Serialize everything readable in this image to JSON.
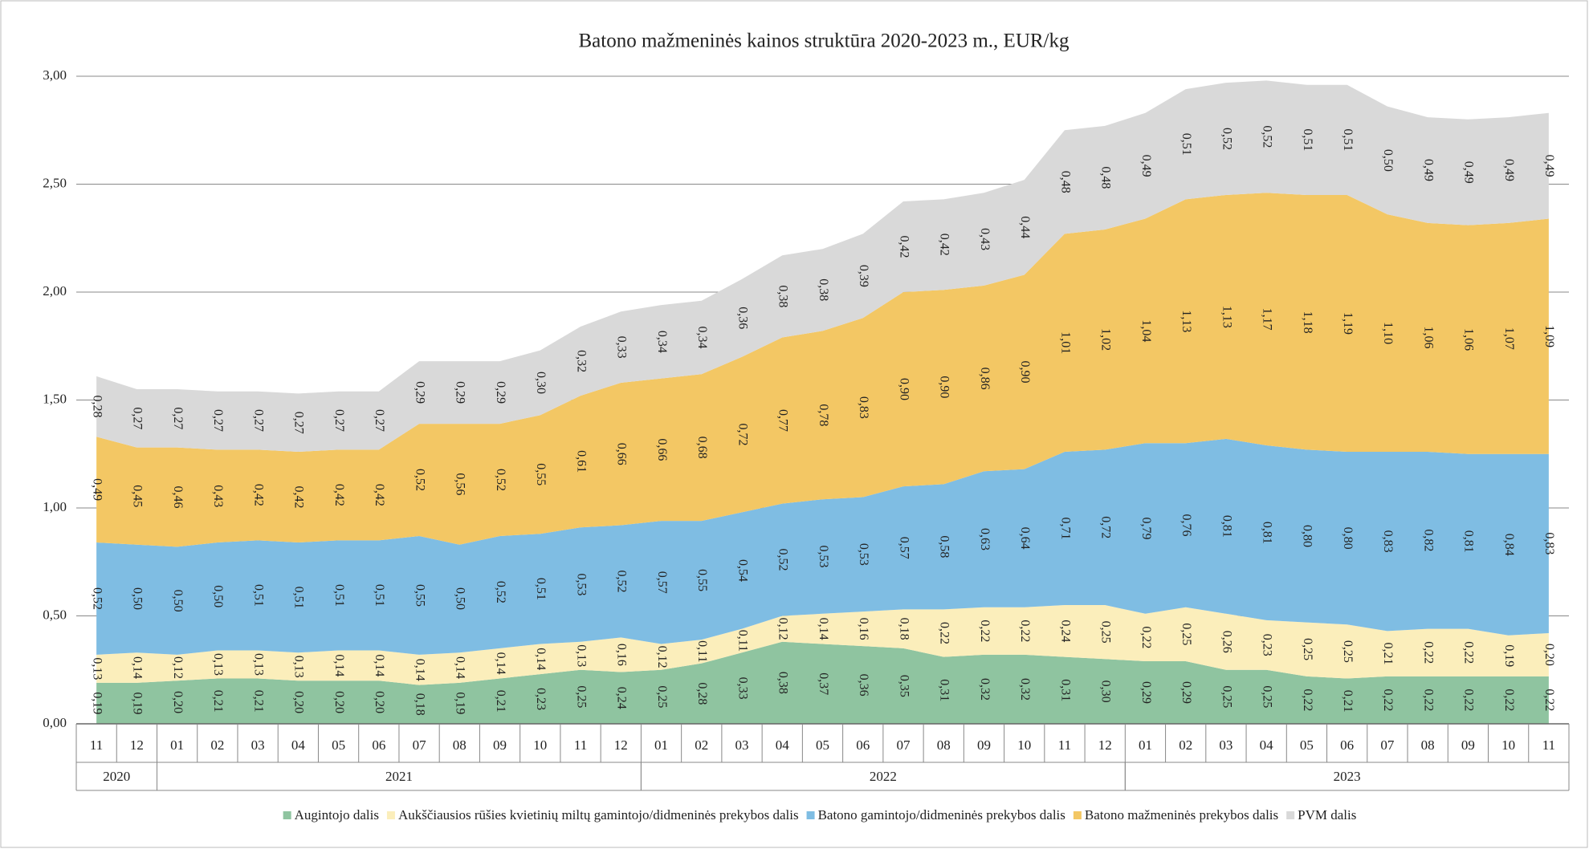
{
  "chart_data": {
    "type": "stacked_area",
    "title": "Batono mažmeninės  kainos struktūra 2020-2023 m., EUR/kg",
    "categories": [
      "11",
      "12",
      "01",
      "02",
      "03",
      "04",
      "05",
      "06",
      "07",
      "08",
      "09",
      "10",
      "11",
      "12",
      "01",
      "02",
      "03",
      "04",
      "05",
      "06",
      "07",
      "08",
      "09",
      "10",
      "11",
      "12",
      "01",
      "02",
      "03",
      "04",
      "05",
      "06",
      "07",
      "08",
      "09",
      "10",
      "11"
    ],
    "year_groups": [
      {
        "label": "2020",
        "count": 2
      },
      {
        "label": "2021",
        "count": 12
      },
      {
        "label": "2022",
        "count": 12
      },
      {
        "label": "2023",
        "count": 11
      }
    ],
    "ylim": [
      0,
      3
    ],
    "yticks": [
      {
        "value": 0,
        "label": "0,00"
      },
      {
        "value": 0.5,
        "label": "0,50"
      },
      {
        "value": 1,
        "label": "1,00"
      },
      {
        "value": 1.5,
        "label": "1,50"
      },
      {
        "value": 2,
        "label": "2,00"
      },
      {
        "value": 2.5,
        "label": "2,50"
      },
      {
        "value": 3,
        "label": "3,00"
      }
    ],
    "grid": true,
    "legend": "bottom",
    "series": [
      {
        "name": "Augintojo dalis",
        "color": "#8fc4a0",
        "values": [
          0.19,
          0.19,
          0.2,
          0.21,
          0.21,
          0.2,
          0.2,
          0.2,
          0.18,
          0.19,
          0.21,
          0.23,
          0.25,
          0.24,
          0.25,
          0.28,
          0.33,
          0.38,
          0.37,
          0.36,
          0.35,
          0.31,
          0.32,
          0.32,
          0.31,
          0.3,
          0.29,
          0.29,
          0.25,
          0.25,
          0.22,
          0.21,
          0.22,
          0.22,
          0.22,
          0.22,
          0.22
        ],
        "value_labels": [
          "0,19",
          "0,19",
          "0,20",
          "0,21",
          "0,21",
          "0,20",
          "0,20",
          "0,20",
          "0,18",
          "0,19",
          "0,21",
          "0,23",
          "0,25",
          "0,24",
          "0,25",
          "0,28",
          "0,33",
          "0,38",
          "0,37",
          "0,36",
          "0,35",
          "0,31",
          "0,32",
          "0,32",
          "0,31",
          "0,30",
          "0,29",
          "0,29",
          "0,25",
          "0,25",
          "0,22",
          "0,21",
          "0,22",
          "0,22",
          "0,22",
          "0,22",
          "0,22"
        ]
      },
      {
        "name": "Aukščiausios rūšies kvietinių miltų gamintojo/didmeninės prekybos dalis",
        "color": "#fbeebb",
        "values": [
          0.13,
          0.14,
          0.12,
          0.13,
          0.13,
          0.13,
          0.14,
          0.14,
          0.14,
          0.14,
          0.14,
          0.14,
          0.13,
          0.16,
          0.12,
          0.11,
          0.11,
          0.12,
          0.14,
          0.16,
          0.18,
          0.22,
          0.22,
          0.22,
          0.24,
          0.25,
          0.22,
          0.25,
          0.26,
          0.23,
          0.25,
          0.25,
          0.21,
          0.22,
          0.22,
          0.19,
          0.2
        ],
        "value_labels": [
          "0,13",
          "0,14",
          "0,12",
          "0,13",
          "0,13",
          "0,13",
          "0,14",
          "0,14",
          "0,14",
          "0,14",
          "0,14",
          "0,14",
          "0,13",
          "0,16",
          "0,12",
          "0,11",
          "0,11",
          "0,12",
          "0,14",
          "0,16",
          "0,18",
          "0,22",
          "0,22",
          "0,22",
          "0,24",
          "0,25",
          "0,22",
          "0,25",
          "0,26",
          "0,23",
          "0,25",
          "0,25",
          "0,21",
          "0,22",
          "0,22",
          "0,19",
          "0,20"
        ]
      },
      {
        "name": "Batono gamintojo/didmeninės prekybos dalis",
        "color": "#7fbde3",
        "values": [
          0.52,
          0.5,
          0.5,
          0.5,
          0.51,
          0.51,
          0.51,
          0.51,
          0.55,
          0.5,
          0.52,
          0.51,
          0.53,
          0.52,
          0.57,
          0.55,
          0.54,
          0.52,
          0.53,
          0.53,
          0.57,
          0.58,
          0.63,
          0.64,
          0.71,
          0.72,
          0.79,
          0.76,
          0.81,
          0.81,
          0.8,
          0.8,
          0.83,
          0.82,
          0.81,
          0.84,
          0.83
        ],
        "value_labels": [
          "0,52",
          "0,50",
          "0,50",
          "0,50",
          "0,51",
          "0,51",
          "0,51",
          "0,51",
          "0,55",
          "0,50",
          "0,52",
          "0,51",
          "0,53",
          "0,52",
          "0,57",
          "0,55",
          "0,54",
          "0,52",
          "0,53",
          "0,53",
          "0,57",
          "0,58",
          "0,63",
          "0,64",
          "0,71",
          "0,72",
          "0,79",
          "0,76",
          "0,81",
          "0,81",
          "0,80",
          "0,80",
          "0,83",
          "0,82",
          "0,81",
          "0,84",
          "0,83"
        ]
      },
      {
        "name": "Batono mažmeninės prekybos dalis",
        "color": "#f3c764",
        "values": [
          0.49,
          0.45,
          0.46,
          0.43,
          0.42,
          0.42,
          0.42,
          0.42,
          0.52,
          0.56,
          0.52,
          0.55,
          0.61,
          0.66,
          0.66,
          0.68,
          0.72,
          0.77,
          0.78,
          0.83,
          0.9,
          0.9,
          0.86,
          0.9,
          1.01,
          1.02,
          1.04,
          1.13,
          1.13,
          1.17,
          1.18,
          1.19,
          1.1,
          1.06,
          1.06,
          1.07,
          1.09
        ],
        "value_labels": [
          "0,49",
          "0,45",
          "0,46",
          "0,43",
          "0,42",
          "0,42",
          "0,42",
          "0,42",
          "0,52",
          "0,56",
          "0,52",
          "0,55",
          "0,61",
          "0,66",
          "0,66",
          "0,68",
          "0,72",
          "0,77",
          "0,78",
          "0,83",
          "0,90",
          "0,90",
          "0,86",
          "0,90",
          "1,01",
          "1,02",
          "1,04",
          "1,13",
          "1,13",
          "1,17",
          "1,18",
          "1,19",
          "1,10",
          "1,06",
          "1,06",
          "1,07",
          "1,09"
        ]
      },
      {
        "name": "PVM dalis",
        "color": "#d9d9d9",
        "values": [
          0.28,
          0.27,
          0.27,
          0.27,
          0.27,
          0.27,
          0.27,
          0.27,
          0.29,
          0.29,
          0.29,
          0.3,
          0.32,
          0.33,
          0.34,
          0.34,
          0.36,
          0.38,
          0.38,
          0.39,
          0.42,
          0.42,
          0.43,
          0.44,
          0.48,
          0.48,
          0.49,
          0.51,
          0.52,
          0.52,
          0.51,
          0.51,
          0.5,
          0.49,
          0.49,
          0.49,
          0.49
        ],
        "value_labels": [
          "0,28",
          "0,27",
          "0,27",
          "0,27",
          "0,27",
          "0,27",
          "0,27",
          "0,27",
          "0,29",
          "0,29",
          "0,29",
          "0,30",
          "0,32",
          "0,33",
          "0,34",
          "0,34",
          "0,36",
          "0,38",
          "0,38",
          "0,39",
          "0,42",
          "0,42",
          "0,43",
          "0,44",
          "0,48",
          "0,48",
          "0,49",
          "0,51",
          "0,52",
          "0,52",
          "0,51",
          "0,51",
          "0,50",
          "0,49",
          "0,49",
          "0,49",
          "0,49"
        ]
      }
    ]
  }
}
